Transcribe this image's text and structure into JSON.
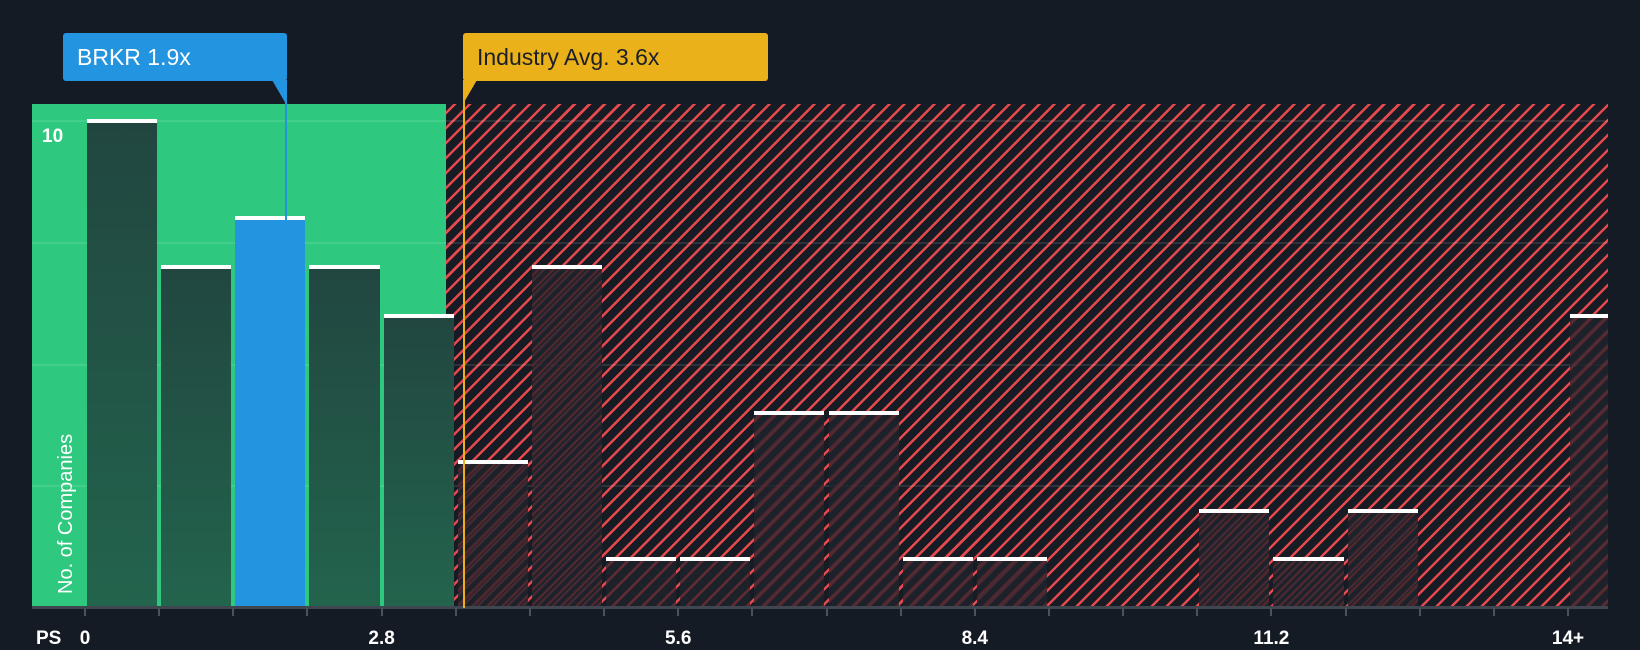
{
  "callouts": {
    "company": {
      "label": "BRKR 1.9x",
      "color": "#2394e0"
    },
    "industry": {
      "label": "Industry Avg. 3.6x",
      "color": "#ebb11a"
    }
  },
  "axis": {
    "x_prefix": "PS",
    "y_label": "No. of Companies",
    "y_tick": "10"
  },
  "colors": {
    "background": "#151b24",
    "under_zone": "#2ec97f",
    "over_zone_hatch": "#e5484d",
    "bar_under": "#214640",
    "bar_highlight": "#2394e0",
    "bar_cap": "#ffffff"
  },
  "chart_data": {
    "type": "bar",
    "title": "",
    "xlabel": "PS",
    "ylabel": "No. of Companies",
    "bin_width": 0.7,
    "x_tick_labels": [
      "0",
      "2.8",
      "5.6",
      "8.4",
      "11.2",
      "14+"
    ],
    "x_tick_values": [
      0,
      2.8,
      5.6,
      8.4,
      11.2,
      14
    ],
    "categories": [
      "0-0.7",
      "0.7-1.4",
      "1.4-2.1",
      "2.1-2.8",
      "2.8-3.5",
      "3.5-4.2",
      "4.2-4.9",
      "4.9-5.6",
      "5.6-6.3",
      "6.3-7.0",
      "7.0-7.7",
      "7.7-8.4",
      "8.4-9.1",
      "9.1-9.8",
      "9.8-10.5",
      "10.5-11.2",
      "11.2-11.9",
      "11.9-12.6",
      "12.6-13.3",
      "13.3-14.0",
      "14+"
    ],
    "values": [
      10,
      7,
      8,
      7,
      6,
      3,
      7,
      1,
      1,
      4,
      4,
      1,
      1,
      0,
      0,
      2,
      1,
      2,
      0,
      0,
      6
    ],
    "highlight_index": 2,
    "company": {
      "ticker": "BRKR",
      "value": 1.9
    },
    "industry_avg": 3.6,
    "ylim": [
      0,
      10.35
    ],
    "y_gridlines": [
      2.5,
      5,
      7.5,
      10
    ],
    "grid": true,
    "legend": "none"
  }
}
